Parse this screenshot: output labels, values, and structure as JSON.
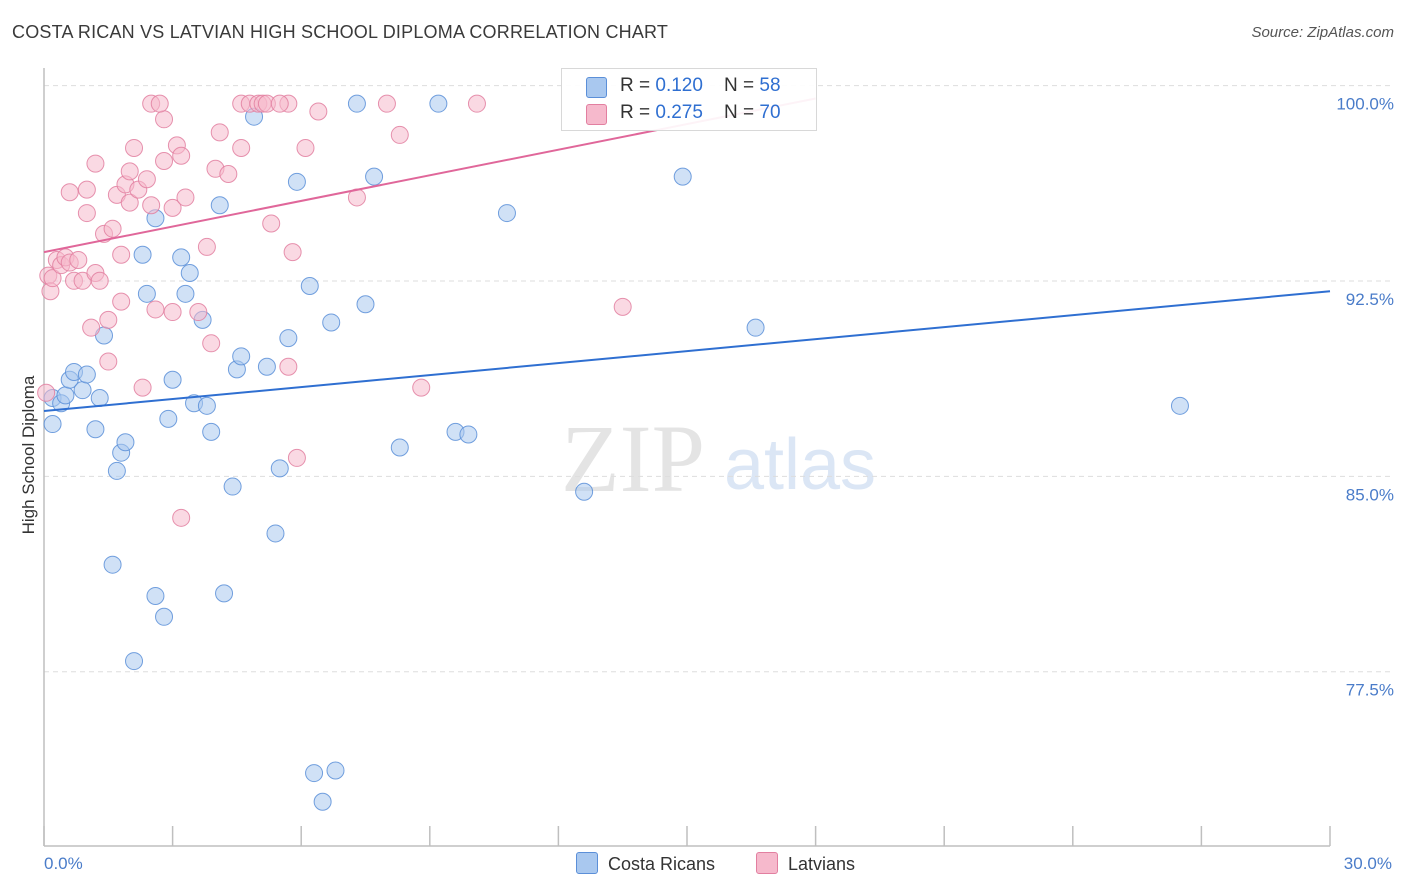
{
  "title": "COSTA RICAN VS LATVIAN HIGH SCHOOL DIPLOMA CORRELATION CHART",
  "source": "Source: ZipAtlas.com",
  "watermark": {
    "zip": "ZIP",
    "atlas": "atlas"
  },
  "colors": {
    "blue_fill": "#a9c8ef",
    "blue_stroke": "#5b8fd8",
    "blue_line": "#2f6fd1",
    "pink_fill": "#f6b9cc",
    "pink_stroke": "#e27fa0",
    "pink_line": "#e0679a",
    "tick_text": "#4a7cc9",
    "grid": "#dddddd"
  },
  "legend": {
    "rows": [
      {
        "r_label": "R = ",
        "r_value": "0.120",
        "n_label": "N = ",
        "n_value": "58"
      },
      {
        "r_label": "R = ",
        "r_value": "0.275",
        "n_label": "N = ",
        "n_value": "70"
      }
    ]
  },
  "bottom_legend": {
    "series1": "Costa Ricans",
    "series2": "Latvians"
  },
  "chart_data": {
    "type": "scatter",
    "title": "COSTA RICAN VS LATVIAN HIGH SCHOOL DIPLOMA CORRELATION CHART",
    "xlabel": "",
    "ylabel": "High School Diploma",
    "xlim": [
      0,
      30
    ],
    "ylim": [
      71.5,
      101.6
    ],
    "x_tick_labels": [
      {
        "value": 0,
        "label": "0.0%"
      },
      {
        "value": 30,
        "label": "30.0%"
      }
    ],
    "y_tick_labels": [
      {
        "value": 100,
        "label": "100.0%"
      },
      {
        "value": 92.5,
        "label": "92.5%"
      },
      {
        "value": 85,
        "label": "85.0%"
      },
      {
        "value": 77.5,
        "label": "77.5%"
      }
    ],
    "series": [
      {
        "name": "Costa Ricans",
        "R": 0.12,
        "N": 58,
        "trend": {
          "x": [
            0,
            30
          ],
          "y": [
            88.2,
            92.8
          ]
        },
        "points": [
          [
            0.2,
            87.7
          ],
          [
            0.2,
            88.7
          ],
          [
            0.4,
            88.5
          ],
          [
            0.5,
            88.8
          ],
          [
            0.6,
            89.4
          ],
          [
            0.7,
            89.7
          ],
          [
            0.9,
            89.0
          ],
          [
            1.0,
            89.6
          ],
          [
            1.2,
            87.5
          ],
          [
            1.3,
            88.7
          ],
          [
            1.4,
            91.1
          ],
          [
            1.6,
            82.3
          ],
          [
            1.7,
            85.9
          ],
          [
            1.8,
            86.6
          ],
          [
            1.9,
            87.0
          ],
          [
            2.1,
            78.6
          ],
          [
            2.3,
            94.2
          ],
          [
            2.4,
            92.7
          ],
          [
            2.6,
            95.6
          ],
          [
            2.6,
            81.1
          ],
          [
            2.8,
            80.3
          ],
          [
            2.9,
            87.9
          ],
          [
            3.0,
            89.4
          ],
          [
            3.2,
            94.1
          ],
          [
            3.3,
            92.7
          ],
          [
            3.4,
            93.5
          ],
          [
            3.5,
            88.5
          ],
          [
            3.7,
            91.7
          ],
          [
            3.8,
            88.4
          ],
          [
            3.9,
            87.4
          ],
          [
            4.1,
            96.1
          ],
          [
            4.2,
            81.2
          ],
          [
            4.5,
            89.8
          ],
          [
            4.4,
            85.3
          ],
          [
            4.6,
            90.3
          ],
          [
            4.9,
            99.5
          ],
          [
            5.2,
            89.9
          ],
          [
            5.4,
            83.5
          ],
          [
            5.5,
            86.0
          ],
          [
            5.7,
            91.0
          ],
          [
            5.9,
            97.0
          ],
          [
            6.2,
            93.0
          ],
          [
            6.3,
            74.3
          ],
          [
            6.5,
            73.2
          ],
          [
            6.7,
            91.6
          ],
          [
            6.8,
            74.4
          ],
          [
            7.3,
            100.0
          ],
          [
            7.5,
            92.3
          ],
          [
            7.7,
            97.2
          ],
          [
            8.3,
            86.8
          ],
          [
            9.2,
            100.0
          ],
          [
            9.6,
            87.4
          ],
          [
            9.9,
            87.3
          ],
          [
            10.8,
            95.8
          ],
          [
            12.6,
            85.1
          ],
          [
            14.9,
            97.2
          ],
          [
            16.6,
            91.4
          ],
          [
            26.5,
            88.4
          ]
        ]
      },
      {
        "name": "Latvians",
        "R": 0.275,
        "N": 70,
        "trend": {
          "x": [
            0,
            18
          ],
          "y": [
            94.3,
            100.2
          ]
        },
        "points": [
          [
            0.05,
            88.9
          ],
          [
            0.1,
            93.4
          ],
          [
            0.15,
            92.8
          ],
          [
            0.2,
            93.3
          ],
          [
            0.3,
            94.0
          ],
          [
            0.4,
            93.8
          ],
          [
            0.5,
            94.1
          ],
          [
            0.6,
            93.9
          ],
          [
            0.6,
            96.6
          ],
          [
            0.8,
            94.0
          ],
          [
            0.7,
            93.2
          ],
          [
            0.9,
            93.2
          ],
          [
            1.0,
            96.7
          ],
          [
            1.0,
            95.8
          ],
          [
            1.1,
            91.4
          ],
          [
            1.2,
            93.5
          ],
          [
            1.2,
            97.7
          ],
          [
            1.4,
            95.0
          ],
          [
            1.5,
            91.7
          ],
          [
            1.5,
            90.1
          ],
          [
            1.6,
            95.2
          ],
          [
            1.7,
            96.5
          ],
          [
            1.8,
            92.4
          ],
          [
            1.8,
            94.2
          ],
          [
            1.9,
            96.9
          ],
          [
            2.0,
            97.4
          ],
          [
            2.0,
            96.2
          ],
          [
            2.1,
            98.3
          ],
          [
            2.2,
            96.7
          ],
          [
            2.3,
            89.1
          ],
          [
            2.4,
            97.1
          ],
          [
            2.5,
            96.1
          ],
          [
            2.6,
            92.1
          ],
          [
            2.5,
            100.0
          ],
          [
            2.8,
            97.8
          ],
          [
            2.8,
            99.4
          ],
          [
            3.0,
            96.0
          ],
          [
            3.0,
            92.0
          ],
          [
            3.1,
            98.4
          ],
          [
            3.2,
            98.0
          ],
          [
            3.2,
            84.1
          ],
          [
            3.3,
            96.4
          ],
          [
            3.6,
            92.0
          ],
          [
            3.8,
            94.5
          ],
          [
            3.9,
            90.8
          ],
          [
            4.0,
            97.5
          ],
          [
            4.1,
            98.9
          ],
          [
            4.3,
            97.3
          ],
          [
            4.6,
            98.3
          ],
          [
            4.6,
            100.0
          ],
          [
            4.8,
            100.0
          ],
          [
            5.0,
            100.0
          ],
          [
            5.1,
            100.0
          ],
          [
            5.2,
            100.0
          ],
          [
            5.3,
            95.4
          ],
          [
            5.7,
            100.0
          ],
          [
            5.7,
            89.9
          ],
          [
            5.8,
            94.3
          ],
          [
            5.9,
            86.4
          ],
          [
            6.1,
            98.3
          ],
          [
            6.4,
            99.7
          ],
          [
            7.3,
            96.4
          ],
          [
            8.0,
            100.0
          ],
          [
            8.3,
            98.8
          ],
          [
            8.8,
            89.1
          ],
          [
            10.1,
            100.0
          ],
          [
            13.5,
            92.2
          ],
          [
            5.5,
            100.0
          ],
          [
            2.7,
            100.0
          ],
          [
            1.3,
            93.2
          ]
        ]
      }
    ]
  }
}
